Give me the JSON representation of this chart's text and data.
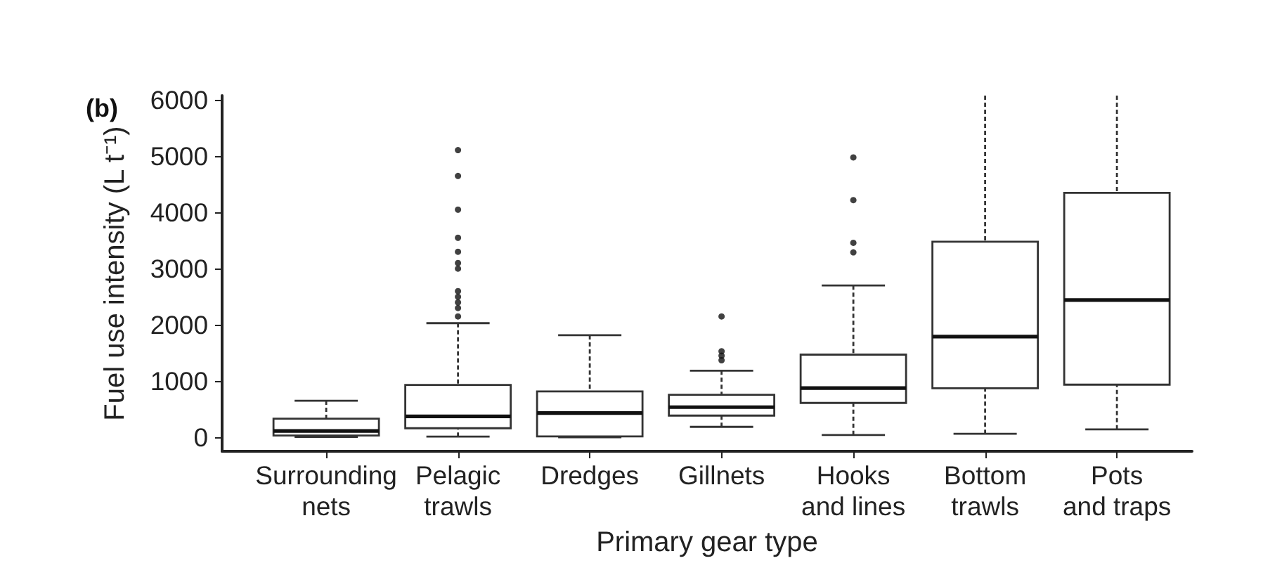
{
  "chart_data": {
    "type": "box",
    "title": "(b)",
    "xlabel": "Primary gear type",
    "ylabel": "Fuel use intensity (L t⁻¹)",
    "categories": [
      "Surrounding nets",
      "Pelagic trawls",
      "Dredges",
      "Gillnets",
      "Hooks and lines",
      "Bottom trawls",
      "Pots and traps"
    ],
    "boxes": [
      {
        "low": 5,
        "q1": 30,
        "median": 110,
        "q3": 330,
        "high": 650
      },
      {
        "low": 10,
        "q1": 160,
        "median": 370,
        "q3": 930,
        "high": 2030,
        "outliers": [
          5110,
          4650,
          4050,
          3550,
          3300,
          3100,
          3000,
          2600,
          2500,
          2400,
          2300,
          2150
        ]
      },
      {
        "low": 0,
        "q1": 15,
        "median": 430,
        "q3": 815,
        "high": 1815
      },
      {
        "low": 185,
        "q1": 385,
        "median": 535,
        "q3": 755,
        "high": 1185,
        "outliers": [
          2150,
          1530,
          1450,
          1370
        ]
      },
      {
        "low": 40,
        "q1": 610,
        "median": 875,
        "q3": 1470,
        "high": 2700,
        "outliers": [
          4980,
          4220,
          3460,
          3290
        ]
      },
      {
        "low": 60,
        "q1": 870,
        "median": 1790,
        "q3": 3480,
        "high": 6080
      },
      {
        "low": 140,
        "q1": 935,
        "median": 2440,
        "q3": 4350,
        "high": 6080
      }
    ],
    "ylim": [
      -250,
      6080
    ],
    "yticks": [
      0,
      1000,
      2000,
      3000,
      4000,
      5000,
      6000
    ]
  }
}
